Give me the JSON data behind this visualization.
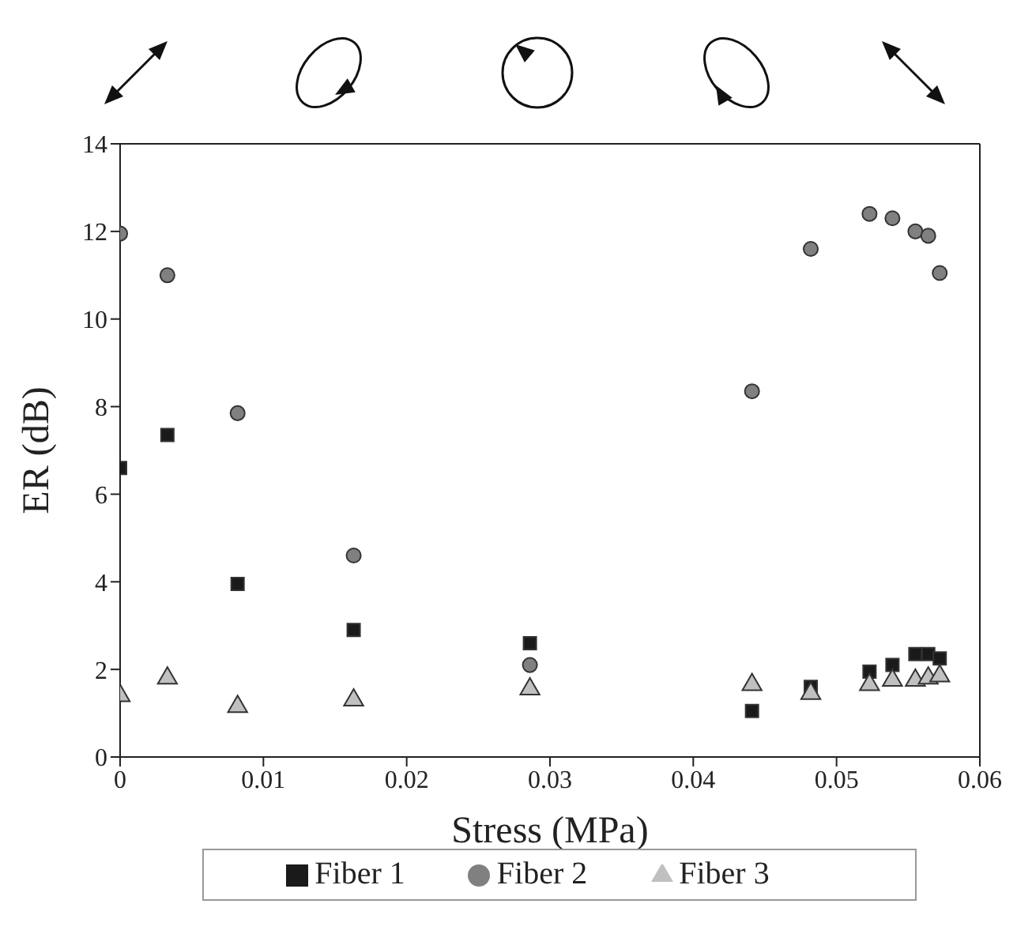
{
  "chart_data": {
    "type": "scatter",
    "xlabel": "Stress (MPa)",
    "ylabel": "ER (dB)",
    "x": [
      0,
      0.0033,
      0.0082,
      0.0163,
      0.0286,
      0.0441,
      0.0482,
      0.0523,
      0.0539,
      0.0555,
      0.0564,
      0.0572
    ],
    "series": [
      {
        "name": "Fiber 1",
        "color": "#1a1a1a",
        "marker": "square",
        "values": [
          6.6,
          7.35,
          3.95,
          2.9,
          2.6,
          1.05,
          1.6,
          1.95,
          2.1,
          2.35,
          2.35,
          2.25
        ]
      },
      {
        "name": "Fiber 2",
        "color": "#808080",
        "marker": "circle",
        "values": [
          11.95,
          11.0,
          7.85,
          4.6,
          2.1,
          8.35,
          11.6,
          12.4,
          12.3,
          12.0,
          11.9,
          11.05
        ]
      },
      {
        "name": "Fiber 3",
        "color": "#c0c0c0",
        "marker": "triangle",
        "values": [
          1.4,
          1.8,
          1.15,
          1.3,
          1.55,
          1.65,
          1.45,
          1.65,
          1.75,
          1.75,
          1.8,
          1.85
        ]
      }
    ],
    "xlim": [
      0,
      0.06
    ],
    "xticks": [
      0,
      0.01,
      0.02,
      0.03,
      0.04,
      0.05,
      0.06
    ],
    "ylim": [
      0,
      14
    ],
    "yticks": [
      0,
      2,
      4,
      6,
      8,
      10,
      12,
      14
    ],
    "grid": false,
    "legend": "bottom"
  }
}
